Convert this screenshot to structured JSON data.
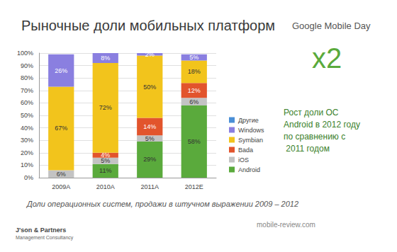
{
  "chart_data": {
    "type": "bar",
    "stacked": true,
    "title": "Рыночные доли мобильных платформ",
    "categories": [
      "2009A",
      "2010A",
      "2011A",
      "2012E"
    ],
    "series": [
      {
        "name": "Android",
        "color": "#5aaa3c",
        "values": [
          0,
          11,
          29,
          58
        ],
        "value_labels": [
          null,
          "11%",
          "29%",
          "58%"
        ]
      },
      {
        "name": "iOS",
        "color": "#c3c3c3",
        "values": [
          6,
          5,
          5,
          6
        ],
        "value_labels": [
          "6%",
          "5%",
          "5%",
          "6%"
        ]
      },
      {
        "name": "Bada",
        "color": "#e2542c",
        "values": [
          0,
          4,
          14,
          12
        ],
        "value_labels": [
          null,
          "4%",
          "14%",
          "12%"
        ]
      },
      {
        "name": "Symbian",
        "color": "#f2c41c",
        "values": [
          67,
          72,
          50,
          18
        ],
        "value_labels": [
          "67%",
          "72%",
          "50%",
          "18%"
        ]
      },
      {
        "name": "Windows",
        "color": "#8a7fe0",
        "values": [
          26,
          8,
          2,
          5
        ],
        "value_labels": [
          "26%",
          "8%",
          "2%",
          "5%"
        ]
      },
      {
        "name": "Другие",
        "color": "#4a8fd6",
        "values": [
          0,
          0,
          0,
          0
        ],
        "value_labels": [
          null,
          null,
          null,
          null
        ]
      }
    ],
    "ylim": [
      0,
      100
    ],
    "yticks": [
      {
        "value": 0,
        "label": "0%"
      },
      {
        "value": 10,
        "label": "10%"
      },
      {
        "value": 20,
        "label": "20%"
      },
      {
        "value": 30,
        "label": "30%"
      },
      {
        "value": 40,
        "label": "40%"
      },
      {
        "value": 50,
        "label": "50%"
      },
      {
        "value": 60,
        "label": "60%"
      },
      {
        "value": 70,
        "label": "70%"
      },
      {
        "value": 80,
        "label": "80%"
      },
      {
        "value": 90,
        "label": "90%"
      },
      {
        "value": 100,
        "label": "100%"
      }
    ],
    "grid": true,
    "legend": "right",
    "data_labels": true,
    "annotations": {
      "header": "Google Mobile Day",
      "highlight": "x2",
      "note": "Рост доли ОС Android в 2012 году по сравнению с 2011 годом",
      "caption": "Доли операционных систем, продажи в штучном выражении 2009 – 2012",
      "source": "J'son & Partners",
      "source_sub": "Management Consultancy",
      "watermark": "mobile-review.com"
    }
  }
}
